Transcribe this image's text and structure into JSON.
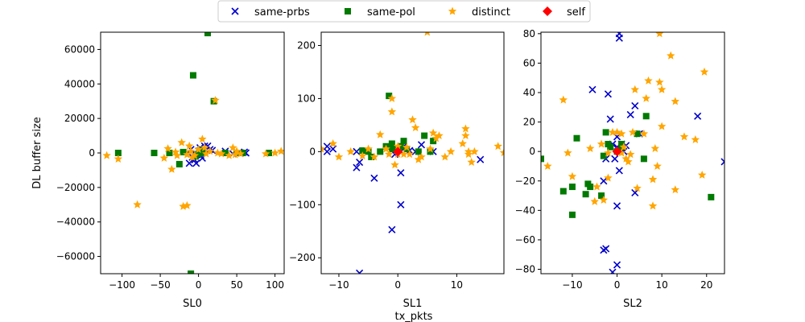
{
  "figure": {
    "ylabel": "DL buffer size",
    "xlabel": "tx_pkts"
  },
  "legend": {
    "placement": "top-center",
    "entries": [
      {
        "label": "same-prbs",
        "marker": "x",
        "color": "#0000cc"
      },
      {
        "label": "same-pol",
        "marker": "square",
        "color": "#007a00"
      },
      {
        "label": "distinct",
        "marker": "star",
        "color": "#ffa500"
      },
      {
        "label": "self",
        "marker": "diamond",
        "color": "#ff0000"
      }
    ]
  },
  "chart_data": [
    {
      "type": "scatter",
      "xlabel": "SL0",
      "ylabel": "DL buffer size",
      "xlim": [
        -128,
        112
      ],
      "ylim": [
        -70000,
        70000
      ],
      "xticks": [
        -100,
        -50,
        0,
        50,
        100
      ],
      "yticks": [
        -60000,
        -40000,
        -20000,
        0,
        20000,
        40000,
        60000
      ],
      "xtick_labels": [
        "−100",
        "−50",
        "0",
        "50",
        "100"
      ],
      "ytick_labels": [
        "−60000",
        "−40000",
        "−20000",
        "0",
        "20000",
        "40000",
        "60000"
      ],
      "grid": false,
      "series": [
        {
          "name": "same-prbs",
          "marker": "x",
          "color": "#0000cc",
          "points": [
            [
              -12,
              -6000
            ],
            [
              -8,
              -2500
            ],
            [
              -5,
              -4000
            ],
            [
              -3,
              -6000
            ],
            [
              -2,
              -1000
            ],
            [
              0,
              1000
            ],
            [
              2,
              3000
            ],
            [
              5,
              -3000
            ],
            [
              8,
              4000
            ],
            [
              12,
              4000
            ],
            [
              15,
              2000
            ],
            [
              18,
              1500
            ],
            [
              35,
              1000
            ],
            [
              45,
              -500
            ],
            [
              60,
              500
            ],
            [
              62,
              0
            ],
            [
              -10,
              2000
            ],
            [
              3,
              -1500
            ]
          ]
        },
        {
          "name": "same-pol",
          "marker": "square",
          "color": "#007a00",
          "points": [
            [
              -105,
              0
            ],
            [
              -58,
              0
            ],
            [
              -38,
              0
            ],
            [
              -25,
              -6500
            ],
            [
              -10,
              -70000
            ],
            [
              -7,
              45000
            ],
            [
              -4,
              -2000
            ],
            [
              0,
              -500
            ],
            [
              5,
              0
            ],
            [
              12,
              69500
            ],
            [
              20,
              30000
            ],
            [
              35,
              0
            ],
            [
              50,
              0
            ],
            [
              58,
              0
            ],
            [
              92,
              0
            ],
            [
              -20,
              500
            ],
            [
              2,
              1500
            ]
          ]
        },
        {
          "name": "distinct",
          "marker": "star",
          "color": "#ffa500",
          "points": [
            [
              -120,
              -1500
            ],
            [
              -105,
              -3500
            ],
            [
              -80,
              -30000
            ],
            [
              -45,
              -3000
            ],
            [
              -35,
              -9500
            ],
            [
              -28,
              -1500
            ],
            [
              -20,
              -31000
            ],
            [
              -15,
              -30500
            ],
            [
              -22,
              6000
            ],
            [
              -12,
              4000
            ],
            [
              -10,
              1000
            ],
            [
              -5,
              -1500
            ],
            [
              0,
              2000
            ],
            [
              5,
              8000
            ],
            [
              10,
              -500
            ],
            [
              15,
              1000
            ],
            [
              22,
              30500
            ],
            [
              25,
              0
            ],
            [
              30,
              -500
            ],
            [
              40,
              -1500
            ],
            [
              45,
              3000
            ],
            [
              50,
              1000
            ],
            [
              55,
              -500
            ],
            [
              88,
              -500
            ],
            [
              100,
              0
            ],
            [
              108,
              1000
            ],
            [
              -8,
              -2500
            ],
            [
              -30,
              500
            ],
            [
              -40,
              2500
            ],
            [
              -15,
              -1000
            ],
            [
              8,
              3000
            ],
            [
              48,
              -1000
            ]
          ]
        },
        {
          "name": "self",
          "marker": "diamond",
          "color": "#ff0000",
          "points": []
        }
      ]
    },
    {
      "type": "scatter",
      "xlabel": "SL1",
      "xlim": [
        -13,
        18
      ],
      "ylim": [
        -230,
        225
      ],
      "xticks": [
        -10,
        0,
        10
      ],
      "yticks": [
        -200,
        -100,
        0,
        100,
        200
      ],
      "xtick_labels": [
        "−10",
        "0",
        "10"
      ],
      "ytick_labels": [
        "−200",
        "−100",
        "0",
        "100",
        "200"
      ],
      "grid": false,
      "series": [
        {
          "name": "same-prbs",
          "marker": "x",
          "color": "#0000cc",
          "points": [
            [
              -12,
              10
            ],
            [
              -12,
              0
            ],
            [
              -11,
              5
            ],
            [
              -7,
              0
            ],
            [
              -7,
              -30
            ],
            [
              -6.5,
              -20
            ],
            [
              -4,
              -50
            ],
            [
              -1,
              -147
            ],
            [
              -0.5,
              -5
            ],
            [
              0,
              5
            ],
            [
              0.5,
              0
            ],
            [
              0.5,
              -40
            ],
            [
              0.5,
              -100
            ],
            [
              1,
              10
            ],
            [
              3,
              0
            ],
            [
              4,
              13
            ],
            [
              6,
              0
            ],
            [
              14,
              -15
            ],
            [
              -6.5,
              -229
            ],
            [
              2,
              2
            ]
          ]
        },
        {
          "name": "same-pol",
          "marker": "square",
          "color": "#007a00",
          "points": [
            [
              -6,
              2
            ],
            [
              -5,
              0
            ],
            [
              -4.5,
              -10
            ],
            [
              -3,
              0
            ],
            [
              -2,
              10
            ],
            [
              -1.5,
              105
            ],
            [
              -1,
              15
            ],
            [
              0,
              5
            ],
            [
              1,
              20
            ],
            [
              1.5,
              5
            ],
            [
              3.5,
              0
            ],
            [
              4.5,
              30
            ],
            [
              5.5,
              0
            ],
            [
              6,
              20
            ],
            [
              -1,
              5
            ],
            [
              0.5,
              10
            ]
          ]
        },
        {
          "name": "distinct",
          "marker": "star",
          "color": "#ffa500",
          "points": [
            [
              -13,
              5
            ],
            [
              -11,
              15
            ],
            [
              -10,
              -10
            ],
            [
              -6,
              -8
            ],
            [
              -5,
              5
            ],
            [
              -4,
              -10
            ],
            [
              -3,
              32
            ],
            [
              -2,
              5
            ],
            [
              -1.5,
              -5
            ],
            [
              -1,
              100
            ],
            [
              -1,
              75
            ],
            [
              -0.5,
              -25
            ],
            [
              0,
              10
            ],
            [
              1,
              -5
            ],
            [
              1.5,
              8
            ],
            [
              2,
              -5
            ],
            [
              2.5,
              60
            ],
            [
              3,
              45
            ],
            [
              3.5,
              -15
            ],
            [
              4,
              -10
            ],
            [
              5,
              225
            ],
            [
              5.5,
              5
            ],
            [
              6,
              35
            ],
            [
              6.5,
              25
            ],
            [
              7,
              30
            ],
            [
              8,
              -10
            ],
            [
              11,
              15
            ],
            [
              11.5,
              43
            ],
            [
              11.5,
              30
            ],
            [
              12,
              -5
            ],
            [
              12,
              0
            ],
            [
              12.5,
              -20
            ],
            [
              13,
              0
            ],
            [
              17,
              10
            ],
            [
              18,
              -2
            ],
            [
              -8,
              0
            ],
            [
              9,
              0
            ],
            [
              0,
              -5
            ]
          ]
        },
        {
          "name": "self",
          "marker": "diamond",
          "color": "#ff0000",
          "points": [
            [
              0,
              0
            ]
          ]
        }
      ]
    },
    {
      "type": "scatter",
      "xlabel": "SL2",
      "xlim": [
        -17,
        24
      ],
      "ylim": [
        -83,
        81
      ],
      "xticks": [
        -10,
        0,
        10,
        20
      ],
      "yticks": [
        -80,
        -60,
        -40,
        -20,
        0,
        20,
        40,
        60,
        80
      ],
      "xtick_labels": [
        "−10",
        "0",
        "10",
        "20"
      ],
      "ytick_labels": [
        "−80",
        "−60",
        "−40",
        "−20",
        "0",
        "20",
        "40",
        "60",
        "80"
      ],
      "grid": false,
      "series": [
        {
          "name": "same-prbs",
          "marker": "x",
          "color": "#0000cc",
          "points": [
            [
              -5.5,
              42
            ],
            [
              -3,
              -20
            ],
            [
              -3,
              -67
            ],
            [
              -2.5,
              -66
            ],
            [
              -2,
              39
            ],
            [
              -1.5,
              22
            ],
            [
              -1,
              -82
            ],
            [
              -1,
              5
            ],
            [
              0,
              -37
            ],
            [
              0,
              -77
            ],
            [
              0,
              10
            ],
            [
              0,
              3
            ],
            [
              0.5,
              -13
            ],
            [
              0.5,
              80
            ],
            [
              0.5,
              77
            ],
            [
              1,
              5
            ],
            [
              1.5,
              0
            ],
            [
              2,
              4
            ],
            [
              3,
              25
            ],
            [
              4,
              31
            ],
            [
              4,
              -28
            ],
            [
              5,
              12
            ],
            [
              18,
              24
            ],
            [
              24,
              -7
            ],
            [
              -0.5,
              -5
            ],
            [
              -2.5,
              -5
            ]
          ]
        },
        {
          "name": "same-pol",
          "marker": "square",
          "color": "#007a00",
          "points": [
            [
              -17,
              -5
            ],
            [
              -12,
              -27
            ],
            [
              -10,
              -43
            ],
            [
              -10,
              -24
            ],
            [
              -9,
              9
            ],
            [
              -7,
              -29
            ],
            [
              -6.5,
              -22
            ],
            [
              -6,
              -24
            ],
            [
              -3.5,
              -30
            ],
            [
              -3,
              -3
            ],
            [
              -2.5,
              13
            ],
            [
              -1.5,
              3
            ],
            [
              0,
              0
            ],
            [
              1,
              5
            ],
            [
              1,
              3
            ],
            [
              4.5,
              12
            ],
            [
              6,
              -5
            ],
            [
              6.5,
              24
            ],
            [
              21,
              -31
            ],
            [
              -2,
              5
            ]
          ]
        },
        {
          "name": "distinct",
          "marker": "star",
          "color": "#ffa500",
          "points": [
            [
              -15.5,
              -10
            ],
            [
              -12,
              35
            ],
            [
              -11,
              -1
            ],
            [
              -10,
              -17
            ],
            [
              -6,
              2
            ],
            [
              -5,
              -34
            ],
            [
              -4.5,
              -24
            ],
            [
              -3,
              -33
            ],
            [
              -2,
              -18
            ],
            [
              -2,
              -1
            ],
            [
              -1,
              13
            ],
            [
              1,
              -1
            ],
            [
              1,
              12
            ],
            [
              1.5,
              3
            ],
            [
              2,
              -5
            ],
            [
              2.5,
              -7
            ],
            [
              3,
              -2
            ],
            [
              3.5,
              13
            ],
            [
              4,
              42
            ],
            [
              4.5,
              -25
            ],
            [
              6,
              12
            ],
            [
              6.5,
              36
            ],
            [
              7,
              48
            ],
            [
              8,
              -19
            ],
            [
              8,
              -37
            ],
            [
              8.5,
              2
            ],
            [
              9,
              -10
            ],
            [
              9.5,
              80
            ],
            [
              9.5,
              47
            ],
            [
              10,
              42
            ],
            [
              10,
              17
            ],
            [
              12,
              65
            ],
            [
              13,
              34
            ],
            [
              13,
              -26
            ],
            [
              15,
              10
            ],
            [
              17.5,
              8
            ],
            [
              19,
              -16
            ],
            [
              19.5,
              54
            ],
            [
              -3.5,
              5
            ],
            [
              0,
              13
            ]
          ]
        },
        {
          "name": "self",
          "marker": "diamond",
          "color": "#ff0000",
          "points": [
            [
              0,
              0
            ]
          ]
        }
      ]
    }
  ]
}
